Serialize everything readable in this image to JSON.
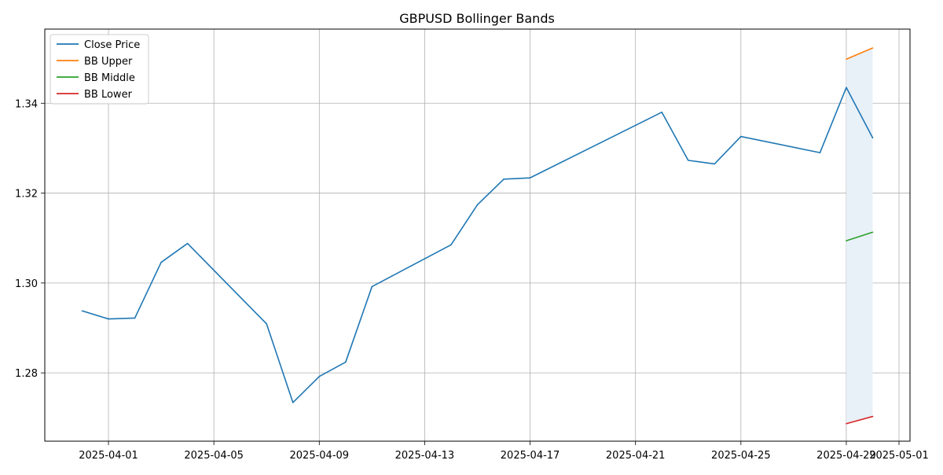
{
  "chart_data": {
    "type": "line",
    "title": "GBPUSD Bollinger Bands",
    "xlabel": "",
    "ylabel": "",
    "x_ticks": [
      "2025-04-01",
      "2025-04-05",
      "2025-04-09",
      "2025-04-13",
      "2025-04-17",
      "2025-04-21",
      "2025-04-25",
      "2025-04-29",
      "2025-05-01"
    ],
    "y_ticks": [
      "1.28",
      "1.30",
      "1.32",
      "1.34"
    ],
    "xlim": [
      "2025-03-29T14:00",
      "2025-05-01T10:00"
    ],
    "ylim": [
      1.2648,
      1.3565
    ],
    "grid": true,
    "legend": "upper-left",
    "series": [
      {
        "name": "Close Price",
        "color": "#1f77b4",
        "points": [
          [
            "2025-03-31",
            1.2938
          ],
          [
            "2025-04-01",
            1.292
          ],
          [
            "2025-04-02",
            1.2922
          ],
          [
            "2025-04-03",
            1.3046
          ],
          [
            "2025-04-04",
            1.3088
          ],
          [
            "2025-04-07",
            1.2909
          ],
          [
            "2025-04-08",
            1.2734
          ],
          [
            "2025-04-09",
            1.2792
          ],
          [
            "2025-04-10",
            1.2824
          ],
          [
            "2025-04-11",
            1.2992
          ],
          [
            "2025-04-14",
            1.3085
          ],
          [
            "2025-04-15",
            1.3174
          ],
          [
            "2025-04-16",
            1.3231
          ],
          [
            "2025-04-17",
            1.3234
          ],
          [
            "2025-04-22",
            1.338
          ],
          [
            "2025-04-23",
            1.3273
          ],
          [
            "2025-04-24",
            1.3265
          ],
          [
            "2025-04-25",
            1.3326
          ],
          [
            "2025-04-28",
            1.329
          ],
          [
            "2025-04-29",
            1.3435
          ],
          [
            "2025-04-30",
            1.3323
          ]
        ]
      },
      {
        "name": "BB Upper",
        "color": "#ff7f0e",
        "points": [
          [
            "2025-04-29",
            1.3498
          ],
          [
            "2025-04-30",
            1.3523
          ]
        ]
      },
      {
        "name": "BB Middle",
        "color": "#2ca02c",
        "points": [
          [
            "2025-04-29",
            1.3094
          ],
          [
            "2025-04-30",
            1.3113
          ]
        ]
      },
      {
        "name": "BB Lower",
        "color": "#d62728",
        "points": [
          [
            "2025-04-29",
            1.2687
          ],
          [
            "2025-04-30",
            1.2703
          ]
        ]
      }
    ],
    "band_fill": "#e8f0f8"
  }
}
